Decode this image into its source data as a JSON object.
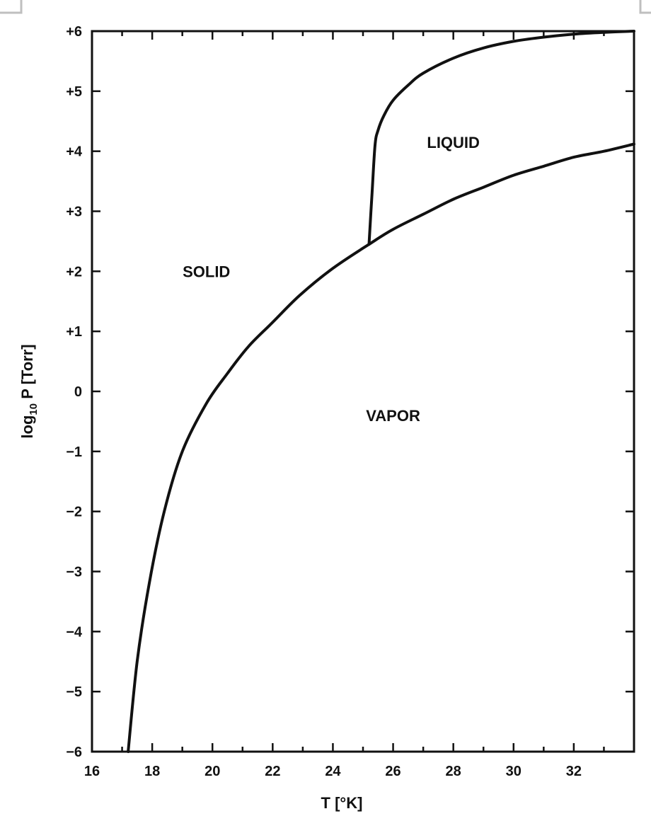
{
  "chart_data": {
    "type": "line",
    "xlabel": "T [°K]",
    "ylabel_main": "log",
    "ylabel_sub": "10",
    "ylabel_rest": " P [Torr]",
    "xlim": [
      16,
      34
    ],
    "ylim": [
      -6,
      6
    ],
    "x_ticks": [
      16,
      18,
      20,
      22,
      24,
      26,
      28,
      30,
      32
    ],
    "x_tick_labels": [
      "16",
      "18",
      "20",
      "22",
      "24",
      "26",
      "28",
      "30",
      "32"
    ],
    "y_ticks": [
      6,
      5,
      4,
      3,
      2,
      1,
      0,
      -1,
      -2,
      -3,
      -4,
      -5,
      -6
    ],
    "y_tick_labels": [
      "+6",
      "+5",
      "+4",
      "+3",
      "+2",
      "+1",
      "0",
      "−1",
      "−2",
      "−3",
      "−4",
      "−5",
      "−6"
    ],
    "series": [
      {
        "x": [
          17.2,
          17.5,
          17.9,
          18.4,
          19.0,
          19.8,
          20.5,
          21.2,
          22.0,
          22.9,
          24.0,
          25.2,
          26.0,
          27.0,
          28.0,
          29.0,
          30.0,
          31.0,
          32.0,
          33.0,
          34.0
        ],
        "y": [
          -6.0,
          -4.5,
          -3.2,
          -2.0,
          -1.0,
          -0.2,
          0.3,
          0.75,
          1.15,
          1.6,
          2.05,
          2.45,
          2.7,
          2.95,
          3.2,
          3.4,
          3.6,
          3.75,
          3.9,
          4.0,
          4.12
        ]
      },
      {
        "x": [
          25.2,
          25.3,
          25.4,
          25.5,
          25.7,
          26.0,
          26.5,
          27.0,
          28.0,
          29.0,
          30.0,
          31.0,
          32.0,
          33.0,
          34.0
        ],
        "y": [
          2.45,
          3.3,
          4.1,
          4.35,
          4.6,
          4.85,
          5.1,
          5.3,
          5.55,
          5.72,
          5.83,
          5.9,
          5.95,
          5.98,
          6.0
        ]
      }
    ],
    "annotations": [
      {
        "text": "SOLID",
        "x": 19.8,
        "y": 2.0
      },
      {
        "text": "LIQUID",
        "x": 28.0,
        "y": 4.15
      },
      {
        "text": "VAPOR",
        "x": 26.0,
        "y": -0.4
      }
    ],
    "grid": false
  }
}
